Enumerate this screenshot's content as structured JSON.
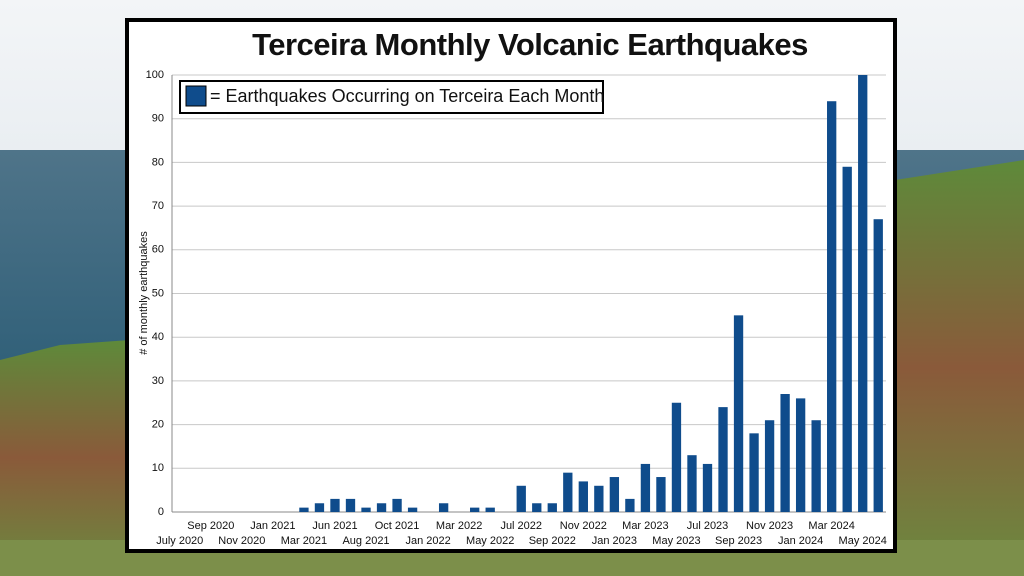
{
  "chart_data": {
    "type": "bar",
    "title": "Terceira Monthly Volcanic Earthquakes",
    "y_label": "# of monthly earthquakes",
    "legend_label": "= Earthquakes Occurring on Terceira Each Month",
    "color": "#0f4c8c",
    "categories": [
      "July 2020",
      null,
      "Sep 2020",
      null,
      "Nov 2020",
      null,
      "Jan 2021",
      null,
      "Mar 2021",
      null,
      "Jun 2021",
      null,
      "Aug 2021",
      null,
      "Oct 2021",
      null,
      "Jan 2022",
      null,
      "Mar 2022",
      null,
      "May 2022",
      null,
      "Jul 2022",
      null,
      "Sep 2022",
      null,
      "Nov 2022",
      null,
      "Jan 2023",
      null,
      "Mar 2023",
      null,
      "May 2023",
      null,
      "Jul 2023",
      null,
      "Sep 2023",
      null,
      "Nov 2023",
      null,
      "Jan 2024",
      null,
      "Mar 2024",
      null,
      "May 2024",
      null
    ],
    "values": [
      0,
      0,
      0,
      0,
      0,
      0,
      0,
      0,
      1,
      2,
      3,
      3,
      1,
      2,
      3,
      1,
      0,
      2,
      0,
      1,
      1,
      0,
      6,
      2,
      2,
      9,
      7,
      6,
      8,
      3,
      11,
      8,
      25,
      13,
      11,
      24,
      45,
      18,
      21,
      27,
      26,
      21,
      94,
      79,
      100,
      67
    ],
    "ylim": [
      0,
      100
    ],
    "yticks": [
      0,
      10,
      20,
      30,
      40,
      50,
      60,
      70,
      80,
      90,
      100
    ],
    "grid": true
  }
}
